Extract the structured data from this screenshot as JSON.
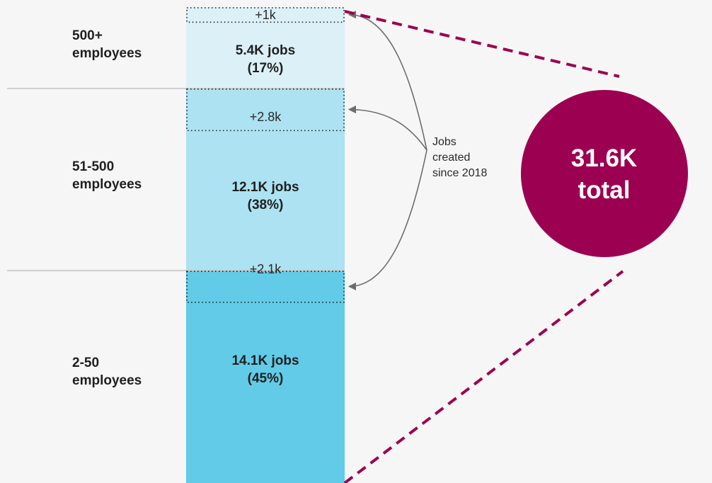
{
  "colors": {
    "background": "#f6f6f6",
    "segments": [
      "#62cbe8",
      "#ace2f1",
      "#dcf0f8"
    ],
    "total_circle": "#9c0050"
  },
  "annotation": {
    "text": "Jobs created since 2018",
    "lines": [
      "Jobs",
      "created",
      "since 2018"
    ]
  },
  "total": {
    "value": "31.6K",
    "label": "total"
  },
  "chart_data": {
    "type": "bar",
    "orientation": "vertical-stacked",
    "unit": "jobs (thousands)",
    "total": 31.6,
    "ylim": [
      0,
      31.6
    ],
    "grid": false,
    "categories": [
      {
        "key": "small",
        "label": "2-50 employees",
        "label_lines": [
          "2-50",
          "employees"
        ],
        "value": 14.1,
        "value_text": "14.1K jobs",
        "share": 45,
        "share_text": "(45%)",
        "added_since_2018": 2.1,
        "added_text": "+2.1k"
      },
      {
        "key": "medium",
        "label": "51-500 employees",
        "label_lines": [
          "51-500",
          "employees"
        ],
        "value": 12.1,
        "value_text": "12.1K jobs",
        "share": 38,
        "share_text": "(38%)",
        "added_since_2018": 2.8,
        "added_text": "+2.8k"
      },
      {
        "key": "large",
        "label": "500+ employees",
        "label_lines": [
          "500+",
          "employees"
        ],
        "value": 5.4,
        "value_text": "5.4K jobs",
        "share": 17,
        "share_text": "(17%)",
        "added_since_2018": 1.0,
        "added_text": "+1k"
      }
    ]
  }
}
